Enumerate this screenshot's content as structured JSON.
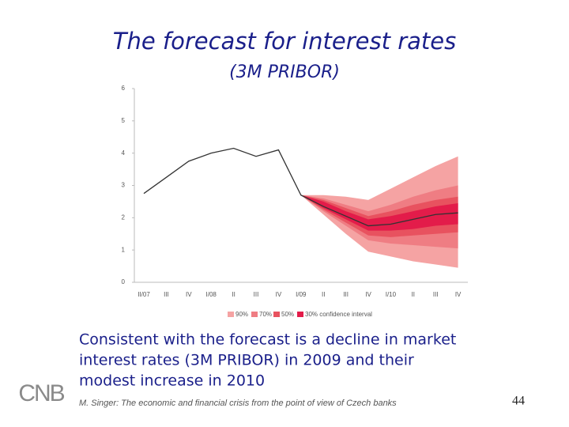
{
  "title": "The forecast for interest rates",
  "subtitle": "(3M PRIBOR)",
  "chart_data": {
    "type": "fan",
    "categories": [
      "II/07",
      "III",
      "IV",
      "I/08",
      "II",
      "III",
      "IV",
      "I/09",
      "II",
      "III",
      "IV",
      "I/10",
      "II",
      "III",
      "IV"
    ],
    "ylim": [
      0,
      6
    ],
    "yticks": [
      0,
      1,
      2,
      3,
      4,
      5,
      6
    ],
    "series": [
      {
        "color": "#333333",
        "values": [
          2.75,
          3.25,
          3.75,
          4.0,
          4.15,
          3.9,
          4.1,
          2.7,
          2.35,
          2.05,
          1.75,
          1.8,
          1.95,
          2.1,
          2.15
        ]
      }
    ],
    "intervals": [
      {
        "name": "90%",
        "color": "#f5a3a3",
        "upper": [
          null,
          null,
          null,
          null,
          null,
          null,
          null,
          2.7,
          2.7,
          2.65,
          2.55,
          2.9,
          3.25,
          3.6,
          3.9
        ],
        "lower": [
          null,
          null,
          null,
          null,
          null,
          null,
          null,
          2.7,
          2.1,
          1.5,
          0.95,
          0.8,
          0.65,
          0.55,
          0.45
        ]
      },
      {
        "name": "70%",
        "color": "#ef7d83",
        "upper": [
          null,
          null,
          null,
          null,
          null,
          null,
          null,
          2.7,
          2.6,
          2.4,
          2.2,
          2.4,
          2.65,
          2.85,
          3.0
        ],
        "lower": [
          null,
          null,
          null,
          null,
          null,
          null,
          null,
          2.7,
          2.2,
          1.75,
          1.3,
          1.2,
          1.15,
          1.1,
          1.05
        ]
      },
      {
        "name": "50%",
        "color": "#e8525f",
        "upper": [
          null,
          null,
          null,
          null,
          null,
          null,
          null,
          2.7,
          2.55,
          2.3,
          2.05,
          2.2,
          2.4,
          2.55,
          2.65
        ],
        "lower": [
          null,
          null,
          null,
          null,
          null,
          null,
          null,
          2.7,
          2.25,
          1.85,
          1.45,
          1.4,
          1.45,
          1.5,
          1.55
        ]
      },
      {
        "name": "30% confidence interval",
        "color": "#e31c4a",
        "upper": [
          null,
          null,
          null,
          null,
          null,
          null,
          null,
          2.7,
          2.5,
          2.2,
          1.95,
          2.05,
          2.2,
          2.35,
          2.45
        ],
        "lower": [
          null,
          null,
          null,
          null,
          null,
          null,
          null,
          2.7,
          2.3,
          1.95,
          1.6,
          1.6,
          1.65,
          1.75,
          1.8
        ]
      }
    ]
  },
  "body": [
    "Consistent with the forecast is a decline in market",
    "interest rates (3M PRIBOR) in 2009 and their",
    "modest increase in 2010"
  ],
  "footer": "M. Singer: The economic and financial crisis from the point of view of Czech banks",
  "page_number": "44",
  "logo": "CNB"
}
